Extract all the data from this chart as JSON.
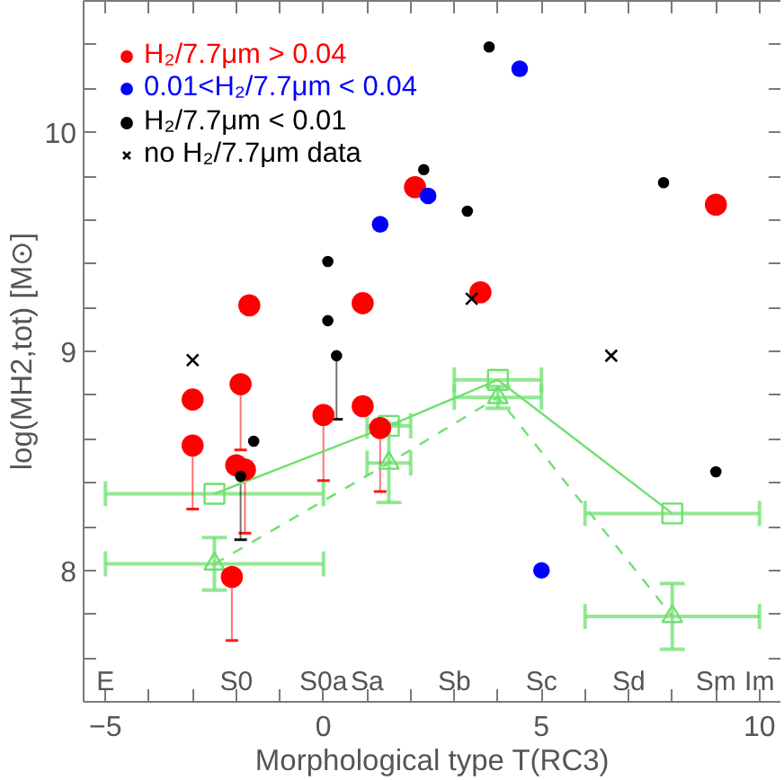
{
  "chart_data": {
    "type": "scatter",
    "xlabel": "Morphological type T(RC3)",
    "ylabel": "log(MH2,tot) [M⊙]",
    "xlim": [
      -5.5,
      10.5
    ],
    "ylim": [
      7.4,
      10.6
    ],
    "xticks": [
      -5,
      {
        "value": -4,
        "label": null
      },
      {
        "value": -3,
        "label": null
      },
      {
        "value": -2,
        "label": null
      },
      {
        "value": -1,
        "label": null
      },
      0,
      {
        "value": 1,
        "label": null
      },
      {
        "value": 2,
        "label": null
      },
      {
        "value": 3,
        "label": null
      },
      {
        "value": 4,
        "label": null
      },
      5,
      {
        "value": 6,
        "label": null
      },
      {
        "value": 7,
        "label": null
      },
      {
        "value": 8,
        "label": null
      },
      {
        "value": 9,
        "label": null
      },
      10
    ],
    "yticks": [
      {
        "value": 7.6,
        "label": null
      },
      {
        "value": 7.8,
        "label": null
      },
      8,
      {
        "value": 8.2,
        "label": null
      },
      {
        "value": 8.4,
        "label": null
      },
      {
        "value": 8.6,
        "label": null
      },
      {
        "value": 8.8,
        "label": null
      },
      9,
      {
        "value": 9.2,
        "label": null
      },
      {
        "value": 9.4,
        "label": null
      },
      {
        "value": 9.6,
        "label": null
      },
      {
        "value": 9.8,
        "label": null
      },
      10,
      {
        "value": 10.2,
        "label": null
      },
      {
        "value": 10.4,
        "label": null
      }
    ],
    "annotations": [
      "E",
      "S0",
      "S0a",
      "Sa",
      "Sb",
      "Sc",
      "Sd",
      "Sm",
      "Im"
    ],
    "grid": false,
    "legend": "top left",
    "series": [
      {
        "type": "line",
        "color": "#6fe06f",
        "marker": "square",
        "line_style": "solid",
        "x": [
          -2.5,
          1.5,
          4.0,
          8.0
        ],
        "values": [
          8.35,
          8.66,
          8.87,
          8.26
        ],
        "xerrors": [
          2.5,
          0.5,
          1.0,
          2.0
        ]
      },
      {
        "type": "line",
        "color": "#6fe06f",
        "marker": "triangle",
        "line_style": "dashed",
        "x": [
          -2.5,
          1.5,
          4.0,
          8.0
        ],
        "values": [
          8.03,
          8.49,
          8.79,
          7.79
        ],
        "errors": [
          0.12,
          0.18,
          0.05,
          0.15
        ],
        "xerrors": [
          2.5,
          0.5,
          1.0,
          2.0
        ]
      },
      {
        "name": "H₂/7.7μm > 0.04",
        "color": "#ff0000",
        "marker": "circle",
        "x": [
          -1.7,
          0.9,
          2.1,
          9.0,
          3.6,
          -3.0,
          -3.0,
          -1.9,
          0.0,
          0.9,
          1.3,
          -2.0,
          -1.8,
          -2.1
        ],
        "values": [
          9.21,
          9.22,
          9.75,
          9.67,
          9.27,
          8.78,
          8.57,
          8.85,
          8.71,
          8.75,
          8.65,
          8.48,
          8.46,
          7.97
        ],
        "errors": [
          null,
          null,
          null,
          null,
          null,
          null,
          [
            8.28,
            8.57
          ],
          [
            8.55,
            8.85
          ],
          [
            8.41,
            8.71
          ],
          null,
          [
            8.36,
            8.65
          ],
          null,
          [
            8.17,
            8.46
          ],
          [
            7.68,
            7.97
          ]
        ]
      },
      {
        "name": "0.01<H₂/7.7μm < 0.04",
        "color": "#0000ff",
        "marker": "circle",
        "x": [
          1.3,
          4.5,
          2.4,
          5.0
        ],
        "values": [
          9.58,
          10.29,
          9.71,
          8.0
        ]
      },
      {
        "name": "H₂/7.7μm < 0.01",
        "color": "#000000",
        "marker": "circle",
        "x": [
          3.8,
          2.3,
          3.3,
          7.8,
          0.1,
          0.1,
          0.3,
          -1.6,
          9.0,
          -1.9
        ],
        "values": [
          10.39,
          9.83,
          9.64,
          9.77,
          9.41,
          9.14,
          8.98,
          8.59,
          8.45,
          8.43
        ],
        "errors": [
          null,
          null,
          null,
          null,
          null,
          null,
          [
            8.69,
            8.98
          ],
          null,
          null,
          [
            8.14,
            8.43
          ]
        ]
      },
      {
        "name": "no H₂/7.7μm data",
        "color": "#000000",
        "marker": "cross",
        "x": [
          -3.0,
          3.4,
          6.6
        ],
        "values": [
          8.96,
          9.24,
          8.98
        ]
      }
    ]
  }
}
